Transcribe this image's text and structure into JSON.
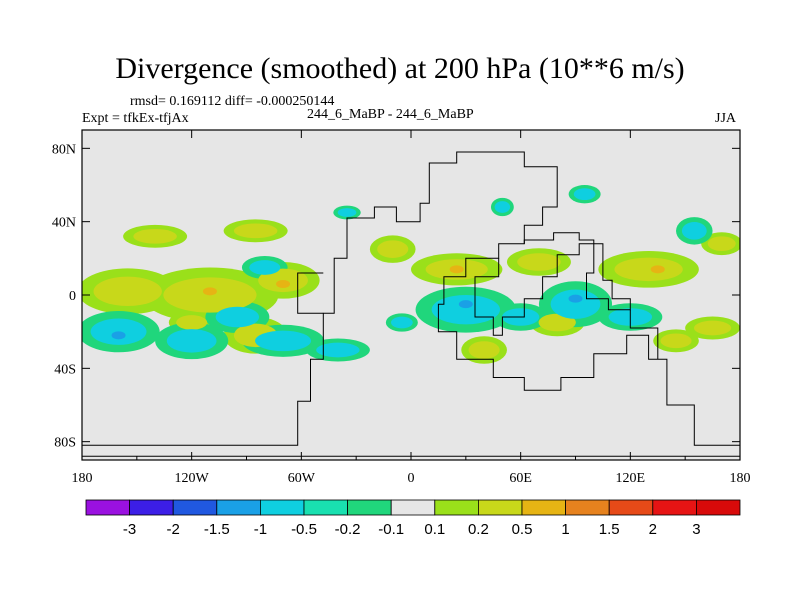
{
  "chart_data": {
    "type": "heatmap",
    "title": "Divergence (smoothed) at 200 hPa (10**6 m/s)",
    "stats": "rmsd= 0.169112 diff= -0.000250144",
    "expt": "Expt = tfkEx-tfjAx",
    "run": "244_6_MaBP - 244_6_MaBP",
    "season": "JJA",
    "x_ticks": [
      "180",
      "120W",
      "60W",
      "0",
      "60E",
      "120E",
      "180"
    ],
    "y_ticks": [
      "80N",
      "40N",
      "0",
      "40S",
      "80S"
    ],
    "x_range": [
      -180,
      180
    ],
    "y_range": [
      -90,
      90
    ],
    "colorbar": {
      "labels": [
        "-3",
        "-2",
        "-1.5",
        "-1",
        "-0.5",
        "-0.2",
        "-0.1",
        "0.1",
        "0.2",
        "0.5",
        "1",
        "1.5",
        "2",
        "3"
      ],
      "colors": [
        "#9a11e0",
        "#3c1ee6",
        "#2058e0",
        "#1aa0e6",
        "#0fcfe0",
        "#19e0b0",
        "#20d67c",
        "#e6e6e6",
        "#9ae01a",
        "#c8d81a",
        "#e6b414",
        "#e6821e",
        "#e64a18",
        "#e61414",
        "#d80a0a"
      ]
    },
    "positive_regions": [
      {
        "lon": -155,
        "lat": 2,
        "rx": 22,
        "ry": 10
      },
      {
        "lon": -110,
        "lat": 0,
        "rx": 30,
        "ry": 12
      },
      {
        "lon": -120,
        "lat": -15,
        "rx": 10,
        "ry": 5
      },
      {
        "lon": -85,
        "lat": -22,
        "rx": 14,
        "ry": 8
      },
      {
        "lon": -70,
        "lat": 8,
        "rx": 16,
        "ry": 8
      },
      {
        "lon": -85,
        "lat": 35,
        "rx": 14,
        "ry": 5
      },
      {
        "lon": -140,
        "lat": 32,
        "rx": 14,
        "ry": 5
      },
      {
        "lon": -10,
        "lat": 25,
        "rx": 10,
        "ry": 6
      },
      {
        "lon": 25,
        "lat": 14,
        "rx": 20,
        "ry": 7
      },
      {
        "lon": 40,
        "lat": -30,
        "rx": 10,
        "ry": 6
      },
      {
        "lon": 70,
        "lat": 18,
        "rx": 14,
        "ry": 6
      },
      {
        "lon": 80,
        "lat": -15,
        "rx": 12,
        "ry": 6
      },
      {
        "lon": 130,
        "lat": 14,
        "rx": 22,
        "ry": 8
      },
      {
        "lon": 165,
        "lat": -18,
        "rx": 12,
        "ry": 5
      },
      {
        "lon": 170,
        "lat": 28,
        "rx": 9,
        "ry": 5
      },
      {
        "lon": 145,
        "lat": -25,
        "rx": 10,
        "ry": 5
      }
    ],
    "negative_regions": [
      {
        "lon": -160,
        "lat": -20,
        "rx": 18,
        "ry": 9
      },
      {
        "lon": -120,
        "lat": -25,
        "rx": 16,
        "ry": 8
      },
      {
        "lon": -95,
        "lat": -12,
        "rx": 14,
        "ry": 7
      },
      {
        "lon": -70,
        "lat": -25,
        "rx": 18,
        "ry": 7
      },
      {
        "lon": -80,
        "lat": 15,
        "rx": 10,
        "ry": 5
      },
      {
        "lon": -40,
        "lat": -30,
        "rx": 14,
        "ry": 5
      },
      {
        "lon": -35,
        "lat": 45,
        "rx": 6,
        "ry": 3
      },
      {
        "lon": 30,
        "lat": -8,
        "rx": 22,
        "ry": 10
      },
      {
        "lon": 90,
        "lat": -5,
        "rx": 16,
        "ry": 10
      },
      {
        "lon": 60,
        "lat": -12,
        "rx": 12,
        "ry": 6
      },
      {
        "lon": 120,
        "lat": -12,
        "rx": 14,
        "ry": 6
      },
      {
        "lon": 95,
        "lat": 55,
        "rx": 7,
        "ry": 4
      },
      {
        "lon": 50,
        "lat": 48,
        "rx": 5,
        "ry": 4
      },
      {
        "lon": -5,
        "lat": -15,
        "rx": 7,
        "ry": 4
      },
      {
        "lon": 155,
        "lat": 35,
        "rx": 8,
        "ry": 6
      }
    ],
    "strong_positive": [
      {
        "lon": -110,
        "lat": 2
      },
      {
        "lon": 135,
        "lat": 14
      },
      {
        "lon": 25,
        "lat": 14
      },
      {
        "lon": -70,
        "lat": 6
      }
    ],
    "strong_negative": [
      {
        "lon": 30,
        "lat": -5
      },
      {
        "lon": 90,
        "lat": -2
      },
      {
        "lon": -160,
        "lat": -22
      }
    ]
  }
}
